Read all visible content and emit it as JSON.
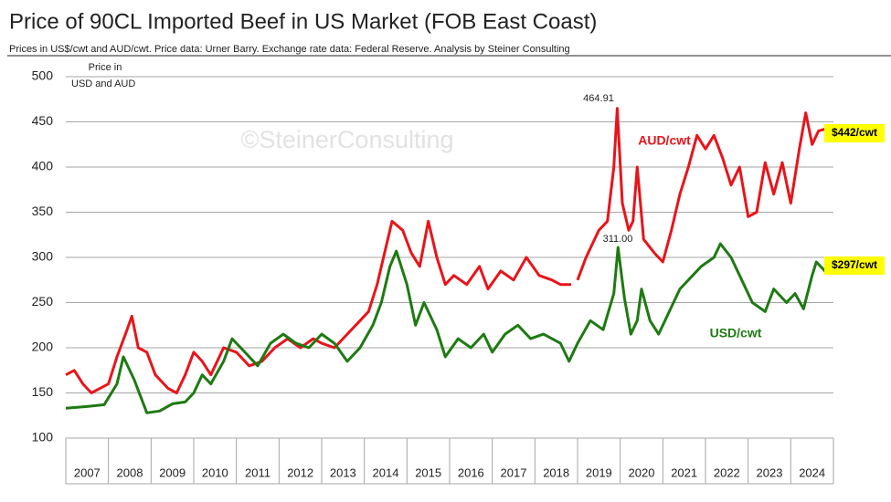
{
  "chart_data": {
    "type": "line",
    "title": "Price of 90CL Imported Beef in US Market (FOB East Coast)",
    "subtitle": "Prices in US$/cwt and AUD/cwt.  Price data: Urner Barry.  Exchange rate data: Federal Reserve.  Analysis by Steiner Consulting",
    "y_label": [
      "Price in",
      "USD and AUD"
    ],
    "watermark": "©SteinerConsulting",
    "xlim": [
      2007,
      2025
    ],
    "xticks": [
      {
        "value": 2007.5,
        "label": "2007"
      },
      {
        "value": 2008.5,
        "label": "2008"
      },
      {
        "value": 2009.5,
        "label": "2009"
      },
      {
        "value": 2010.5,
        "label": "2010"
      },
      {
        "value": 2011.5,
        "label": "2011"
      },
      {
        "value": 2012.5,
        "label": "2012"
      },
      {
        "value": 2013.5,
        "label": "2013"
      },
      {
        "value": 2014.5,
        "label": "2014"
      },
      {
        "value": 2015.5,
        "label": "2015"
      },
      {
        "value": 2016.5,
        "label": "2016"
      },
      {
        "value": 2017.5,
        "label": "2017"
      },
      {
        "value": 2018.5,
        "label": "2018"
      },
      {
        "value": 2019.5,
        "label": "2019"
      },
      {
        "value": 2020.5,
        "label": "2020"
      },
      {
        "value": 2021.5,
        "label": "2021"
      },
      {
        "value": 2022.5,
        "label": "2022"
      },
      {
        "value": 2023.5,
        "label": "2023"
      },
      {
        "value": 2024.5,
        "label": "2024"
      }
    ],
    "ylim": [
      100,
      500
    ],
    "yticks": [
      100,
      150,
      200,
      250,
      300,
      350,
      400,
      450,
      500
    ],
    "grid": true,
    "series": [
      {
        "name": "AUD/cwt",
        "color": "#e8141b",
        "end_label": "$442/cwt",
        "x": [
          2007.0,
          2007.2,
          2007.4,
          2007.6,
          2007.8,
          2008.0,
          2008.2,
          2008.4,
          2008.55,
          2008.7,
          2008.9,
          2009.1,
          2009.4,
          2009.6,
          2009.8,
          2010.0,
          2010.2,
          2010.4,
          2010.7,
          2011.0,
          2011.3,
          2011.6,
          2011.9,
          2012.2,
          2012.5,
          2012.8,
          2013.0,
          2013.3,
          2013.6,
          2013.9,
          2014.1,
          2014.3,
          2014.5,
          2014.65,
          2014.9,
          2015.1,
          2015.3,
          2015.5,
          2015.7,
          2015.9,
          2016.1,
          2016.4,
          2016.7,
          2016.9,
          2017.2,
          2017.5,
          2017.8,
          2018.1,
          2018.4,
          2018.6,
          2018.85,
          2018.92,
          2019.0,
          2019.2,
          2019.5,
          2019.7,
          2019.85,
          2019.93,
          2020.05,
          2020.2,
          2020.3,
          2020.4,
          2020.55,
          2020.8,
          2021.0,
          2021.2,
          2021.4,
          2021.6,
          2021.8,
          2022.0,
          2022.2,
          2022.4,
          2022.6,
          2022.8,
          2023.0,
          2023.2,
          2023.4,
          2023.6,
          2023.8,
          2024.0,
          2024.2,
          2024.35,
          2024.5,
          2024.65,
          2024.8
        ],
        "values": [
          170,
          175,
          160,
          150,
          155,
          160,
          190,
          215,
          235,
          200,
          195,
          170,
          155,
          150,
          170,
          195,
          185,
          170,
          200,
          195,
          180,
          185,
          200,
          210,
          200,
          210,
          205,
          200,
          215,
          230,
          240,
          270,
          310,
          340,
          330,
          305,
          290,
          340,
          300,
          270,
          280,
          270,
          290,
          265,
          285,
          275,
          300,
          280,
          275,
          270,
          270,
          null,
          275,
          300,
          330,
          340,
          400,
          464.91,
          360,
          330,
          340,
          400,
          320,
          305,
          295,
          330,
          370,
          400,
          435,
          420,
          435,
          410,
          380,
          400,
          345,
          350,
          405,
          370,
          405,
          360,
          420,
          460,
          425,
          440,
          442
        ]
      },
      {
        "name": "USD/cwt",
        "color": "#1e7a12",
        "end_label": "$297/cwt",
        "x": [
          2007.0,
          2007.5,
          2007.9,
          2008.2,
          2008.35,
          2008.6,
          2008.9,
          2009.2,
          2009.5,
          2009.8,
          2010.0,
          2010.2,
          2010.4,
          2010.7,
          2010.9,
          2011.2,
          2011.5,
          2011.8,
          2012.1,
          2012.4,
          2012.7,
          2013.0,
          2013.3,
          2013.6,
          2013.9,
          2014.2,
          2014.4,
          2014.6,
          2014.75,
          2015.0,
          2015.2,
          2015.4,
          2015.7,
          2015.9,
          2016.2,
          2016.5,
          2016.8,
          2017.0,
          2017.3,
          2017.6,
          2017.9,
          2018.2,
          2018.6,
          2018.8,
          2019.0,
          2019.3,
          2019.6,
          2019.85,
          2019.95,
          2020.1,
          2020.25,
          2020.4,
          2020.5,
          2020.7,
          2020.9,
          2021.1,
          2021.4,
          2021.7,
          2021.9,
          2022.2,
          2022.35,
          2022.6,
          2022.9,
          2023.1,
          2023.4,
          2023.6,
          2023.9,
          2024.1,
          2024.3,
          2024.5,
          2024.6,
          2024.8,
          2024.9
        ],
        "values": [
          133,
          135,
          137,
          160,
          190,
          165,
          128,
          130,
          138,
          140,
          150,
          170,
          160,
          185,
          210,
          195,
          180,
          205,
          215,
          205,
          200,
          215,
          205,
          185,
          200,
          225,
          250,
          290,
          307,
          270,
          225,
          250,
          220,
          190,
          210,
          200,
          215,
          195,
          215,
          225,
          210,
          215,
          205,
          185,
          205,
          230,
          220,
          260,
          311,
          255,
          215,
          230,
          265,
          230,
          215,
          235,
          265,
          280,
          290,
          300,
          315,
          300,
          270,
          250,
          240,
          265,
          250,
          260,
          243,
          280,
          295,
          285,
          297
        ]
      }
    ],
    "annotations": [
      "464.91",
      "311.00"
    ]
  }
}
